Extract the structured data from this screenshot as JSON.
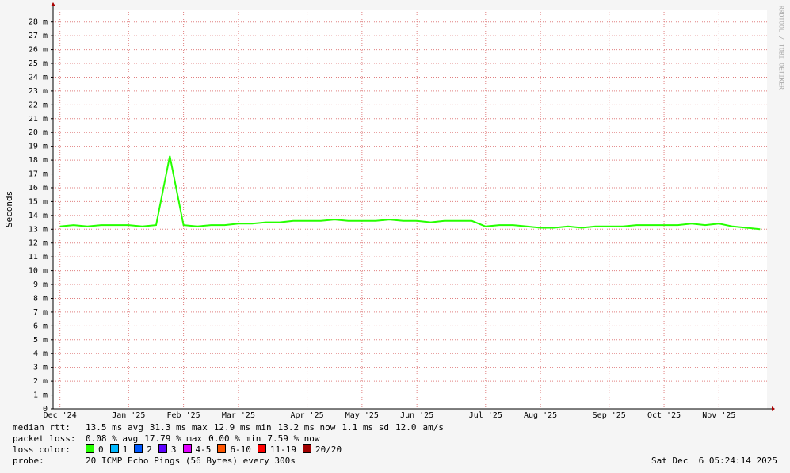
{
  "chart_data": {
    "type": "line",
    "y_label": "Seconds",
    "watermark": "RRDTOOL / TOBI OETIKER",
    "categories": [
      "Dec '24",
      null,
      null,
      null,
      null,
      "Jan '25",
      null,
      null,
      null,
      "Feb '25",
      null,
      null,
      null,
      "Mar '25",
      null,
      null,
      null,
      null,
      "Apr '25",
      null,
      null,
      null,
      "May '25",
      null,
      null,
      null,
      "Jun '25",
      null,
      null,
      null,
      null,
      "Jul '25",
      null,
      null,
      null,
      "Aug '25",
      null,
      null,
      null,
      null,
      "Sep '25",
      null,
      null,
      null,
      "Oct '25",
      null,
      null,
      null,
      "Nov '25",
      null,
      null,
      null
    ],
    "series": [
      {
        "name": "median rtt:",
        "color": "#26ff00",
        "values": [
          0.0132,
          0.0133,
          0.0132,
          0.0133,
          0.0133,
          0.0133,
          0.0132,
          0.0133,
          0.0183,
          0.0133,
          0.0132,
          0.0133,
          0.0133,
          0.0134,
          0.0134,
          0.0135,
          0.0135,
          0.0136,
          0.0136,
          0.0136,
          0.0137,
          0.0136,
          0.0136,
          0.0136,
          0.0137,
          0.0136,
          0.0136,
          0.0135,
          0.0136,
          0.0136,
          0.0136,
          0.0132,
          0.0133,
          0.0133,
          0.0132,
          0.0131,
          0.0131,
          0.0132,
          0.0131,
          0.0132,
          0.0132,
          0.0132,
          0.0133,
          0.0133,
          0.0133,
          0.0133,
          0.0134,
          0.0133,
          0.0134,
          0.0132,
          0.0131,
          0.013
        ]
      }
    ],
    "ylim": [
      0,
      0.0289
    ],
    "yticks": [
      0,
      {
        "value": 0.001,
        "label": "1 m"
      },
      {
        "value": 0.002,
        "label": "2 m"
      },
      {
        "value": 0.003,
        "label": "3 m"
      },
      {
        "value": 0.004,
        "label": "4 m"
      },
      {
        "value": 0.005,
        "label": "5 m"
      },
      {
        "value": 0.006,
        "label": "6 m"
      },
      {
        "value": 0.007,
        "label": "7 m"
      },
      {
        "value": 0.008,
        "label": "8 m"
      },
      {
        "value": 0.009,
        "label": "9 m"
      },
      {
        "value": 0.01,
        "label": "10 m"
      },
      {
        "value": 0.011,
        "label": "11 m"
      },
      {
        "value": 0.012,
        "label": "12 m"
      },
      {
        "value": 0.013,
        "label": "13 m"
      },
      {
        "value": 0.014,
        "label": "14 m"
      },
      {
        "value": 0.015,
        "label": "15 m"
      },
      {
        "value": 0.016,
        "label": "16 m"
      },
      {
        "value": 0.017,
        "label": "17 m"
      },
      {
        "value": 0.018,
        "label": "18 m"
      },
      {
        "value": 0.019,
        "label": "19 m"
      },
      {
        "value": 0.02,
        "label": "20 m"
      },
      {
        "value": 0.021,
        "label": "21 m"
      },
      {
        "value": 0.022,
        "label": "22 m"
      },
      {
        "value": 0.023,
        "label": "23 m"
      },
      {
        "value": 0.024,
        "label": "24 m"
      },
      {
        "value": 0.025,
        "label": "25 m"
      },
      {
        "value": 0.026,
        "label": "26 m"
      },
      {
        "value": 0.027,
        "label": "27 m"
      },
      {
        "value": 0.028,
        "label": "28 m"
      }
    ],
    "grid": true,
    "grid_color": "#e08080",
    "stats": [
      [
        "median rtt:",
        "13.5 ms avg",
        "31.3 ms max",
        "12.9 ms min",
        "13.2 ms now",
        "1.1 ms sd",
        "12.0",
        "am/s"
      ],
      [
        "packet loss:",
        "0.08 % avg",
        "17.79 % max",
        "0.00 % min",
        "7.59 % now"
      ]
    ],
    "loss_color_label": "loss color:",
    "loss_colors": [
      {
        "label": "0",
        "color": "#26ff00"
      },
      {
        "label": "1",
        "color": "#00b8ff"
      },
      {
        "label": "2",
        "color": "#0059ff"
      },
      {
        "label": "3",
        "color": "#5e00ff"
      },
      {
        "label": "4-5",
        "color": "#e000ff"
      },
      {
        "label": "6-10",
        "color": "#ff5500"
      },
      {
        "label": "11-19",
        "color": "#ff0000"
      },
      {
        "label": "20/20",
        "color": "#a10000"
      }
    ],
    "probe_label": "probe:",
    "probe": "20 ICMP Echo Pings (56 Bytes) every 300s",
    "timestamp": "Sat Dec  6 05:24:14 2025"
  }
}
